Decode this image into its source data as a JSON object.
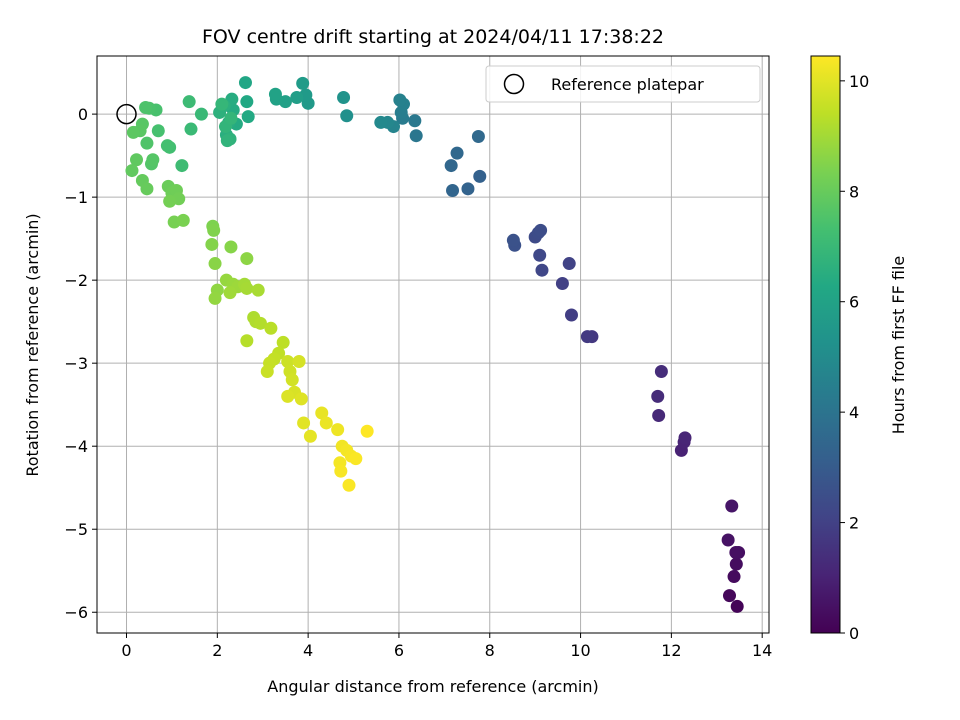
{
  "chart_data": {
    "type": "scatter",
    "title": "FOV centre drift starting at 2024/04/11 17:38:22",
    "xlabel": "Angular distance from reference (arcmin)",
    "ylabel": "Rotation from reference (arcmin)",
    "xlim": [
      -0.65,
      14.15
    ],
    "ylim": [
      -6.25,
      0.7
    ],
    "xticks": [
      0,
      2,
      4,
      6,
      8,
      10,
      12,
      14
    ],
    "yticks": [
      0,
      -1,
      -2,
      -3,
      -4,
      -5,
      -6
    ],
    "xtick_labels": [
      "0",
      "2",
      "4",
      "6",
      "8",
      "10",
      "12",
      "14"
    ],
    "ytick_labels": [
      "0",
      "−1",
      "−2",
      "−3",
      "−4",
      "−5",
      "−6"
    ],
    "grid": true,
    "legend": {
      "label": "Reference platepar",
      "placement": "top-right"
    },
    "reference_point": {
      "x": 0,
      "y": 0
    },
    "colorbar": {
      "label": "Hours from first FF file",
      "range": [
        0,
        10.45
      ],
      "ticks": [
        0,
        2,
        4,
        6,
        8,
        10
      ],
      "tick_labels": [
        "0",
        "2",
        "4",
        "6",
        "8",
        "10"
      ],
      "colormap": "viridis"
    },
    "points": [
      {
        "x": 13.45,
        "y": -5.93,
        "c": 0.1
      },
      {
        "x": 13.28,
        "y": -5.8,
        "c": 0.2
      },
      {
        "x": 13.38,
        "y": -5.57,
        "c": 0.3
      },
      {
        "x": 13.43,
        "y": -5.42,
        "c": 0.35
      },
      {
        "x": 13.48,
        "y": -5.28,
        "c": 0.4
      },
      {
        "x": 13.42,
        "y": -5.28,
        "c": 0.45
      },
      {
        "x": 13.25,
        "y": -5.13,
        "c": 0.5
      },
      {
        "x": 13.33,
        "y": -4.72,
        "c": 0.6
      },
      {
        "x": 12.22,
        "y": -4.05,
        "c": 1.0
      },
      {
        "x": 12.28,
        "y": -3.95,
        "c": 1.05
      },
      {
        "x": 12.3,
        "y": -3.9,
        "c": 1.1
      },
      {
        "x": 11.72,
        "y": -3.63,
        "c": 1.2
      },
      {
        "x": 11.7,
        "y": -3.4,
        "c": 1.3
      },
      {
        "x": 11.78,
        "y": -3.1,
        "c": 1.35
      },
      {
        "x": 10.25,
        "y": -2.68,
        "c": 1.7
      },
      {
        "x": 10.15,
        "y": -2.68,
        "c": 1.75
      },
      {
        "x": 9.8,
        "y": -2.42,
        "c": 1.9
      },
      {
        "x": 9.6,
        "y": -2.04,
        "c": 2.0
      },
      {
        "x": 9.75,
        "y": -1.8,
        "c": 2.05
      },
      {
        "x": 9.15,
        "y": -1.88,
        "c": 2.2
      },
      {
        "x": 9.1,
        "y": -1.7,
        "c": 2.25
      },
      {
        "x": 9.0,
        "y": -1.48,
        "c": 2.35
      },
      {
        "x": 9.07,
        "y": -1.43,
        "c": 2.4
      },
      {
        "x": 9.12,
        "y": -1.4,
        "c": 2.45
      },
      {
        "x": 8.55,
        "y": -1.58,
        "c": 2.6
      },
      {
        "x": 8.52,
        "y": -1.52,
        "c": 2.65
      },
      {
        "x": 7.78,
        "y": -0.75,
        "c": 3.2
      },
      {
        "x": 7.52,
        "y": -0.9,
        "c": 3.3
      },
      {
        "x": 7.18,
        "y": -0.92,
        "c": 3.4
      },
      {
        "x": 7.15,
        "y": -0.62,
        "c": 3.45
      },
      {
        "x": 7.28,
        "y": -0.47,
        "c": 3.5
      },
      {
        "x": 7.75,
        "y": -0.27,
        "c": 3.55
      },
      {
        "x": 6.38,
        "y": -0.26,
        "c": 4.1
      },
      {
        "x": 6.35,
        "y": -0.08,
        "c": 4.2
      },
      {
        "x": 6.08,
        "y": -0.05,
        "c": 4.3
      },
      {
        "x": 6.05,
        "y": 0.02,
        "c": 4.4
      },
      {
        "x": 6.1,
        "y": 0.12,
        "c": 4.5
      },
      {
        "x": 6.02,
        "y": 0.17,
        "c": 4.55
      },
      {
        "x": 5.88,
        "y": -0.15,
        "c": 4.7
      },
      {
        "x": 5.75,
        "y": -0.1,
        "c": 4.8
      },
      {
        "x": 5.6,
        "y": -0.1,
        "c": 4.9
      },
      {
        "x": 4.85,
        "y": -0.02,
        "c": 5.2
      },
      {
        "x": 4.78,
        "y": 0.2,
        "c": 5.3
      },
      {
        "x": 4.0,
        "y": 0.13,
        "c": 5.6
      },
      {
        "x": 3.95,
        "y": 0.23,
        "c": 5.65
      },
      {
        "x": 3.88,
        "y": 0.37,
        "c": 5.7
      },
      {
        "x": 3.75,
        "y": 0.2,
        "c": 5.8
      },
      {
        "x": 3.5,
        "y": 0.15,
        "c": 5.9
      },
      {
        "x": 3.3,
        "y": 0.18,
        "c": 5.95
      },
      {
        "x": 3.28,
        "y": 0.24,
        "c": 6.0
      },
      {
        "x": 2.62,
        "y": 0.38,
        "c": 6.2
      },
      {
        "x": 2.65,
        "y": 0.15,
        "c": 6.25
      },
      {
        "x": 2.68,
        "y": -0.03,
        "c": 6.3
      },
      {
        "x": 2.42,
        "y": -0.12,
        "c": 6.35
      },
      {
        "x": 2.35,
        "y": 0.05,
        "c": 6.4
      },
      {
        "x": 2.32,
        "y": 0.18,
        "c": 6.45
      },
      {
        "x": 2.25,
        "y": -0.1,
        "c": 6.5
      },
      {
        "x": 2.2,
        "y": -0.25,
        "c": 6.55
      },
      {
        "x": 2.15,
        "y": 0.1,
        "c": 6.6
      },
      {
        "x": 2.05,
        "y": 0.02,
        "c": 6.65
      },
      {
        "x": 2.28,
        "y": -0.3,
        "c": 6.7
      },
      {
        "x": 2.22,
        "y": -0.32,
        "c": 6.75
      },
      {
        "x": 2.18,
        "y": -0.15,
        "c": 6.8
      },
      {
        "x": 2.3,
        "y": -0.05,
        "c": 6.85
      },
      {
        "x": 2.1,
        "y": 0.12,
        "c": 6.9
      },
      {
        "x": 1.65,
        "y": 0.0,
        "c": 7.0
      },
      {
        "x": 1.42,
        "y": -0.18,
        "c": 7.05
      },
      {
        "x": 1.38,
        "y": 0.15,
        "c": 7.1
      },
      {
        "x": 1.22,
        "y": -0.62,
        "c": 7.15
      },
      {
        "x": 0.95,
        "y": -0.4,
        "c": 7.25
      },
      {
        "x": 0.9,
        "y": -0.38,
        "c": 7.3
      },
      {
        "x": 0.7,
        "y": -0.2,
        "c": 7.35
      },
      {
        "x": 0.65,
        "y": 0.05,
        "c": 7.4
      },
      {
        "x": 0.5,
        "y": 0.07,
        "c": 7.45
      },
      {
        "x": 0.42,
        "y": 0.08,
        "c": 7.5
      },
      {
        "x": 0.45,
        "y": -0.35,
        "c": 7.55
      },
      {
        "x": 0.55,
        "y": -0.6,
        "c": 7.6
      },
      {
        "x": 0.58,
        "y": -0.55,
        "c": 7.65
      },
      {
        "x": 0.35,
        "y": -0.12,
        "c": 7.7
      },
      {
        "x": 0.3,
        "y": -0.2,
        "c": 7.75
      },
      {
        "x": 0.15,
        "y": -0.22,
        "c": 7.8
      },
      {
        "x": 0.22,
        "y": -0.55,
        "c": 7.85
      },
      {
        "x": 0.12,
        "y": -0.68,
        "c": 7.9
      },
      {
        "x": 0.35,
        "y": -0.8,
        "c": 7.95
      },
      {
        "x": 0.45,
        "y": -0.9,
        "c": 8.0
      },
      {
        "x": 0.92,
        "y": -0.87,
        "c": 8.05
      },
      {
        "x": 1.0,
        "y": -0.95,
        "c": 8.1
      },
      {
        "x": 1.1,
        "y": -0.92,
        "c": 8.15
      },
      {
        "x": 1.15,
        "y": -1.02,
        "c": 8.2
      },
      {
        "x": 0.95,
        "y": -1.05,
        "c": 8.25
      },
      {
        "x": 1.05,
        "y": -1.3,
        "c": 8.3
      },
      {
        "x": 1.25,
        "y": -1.28,
        "c": 8.35
      },
      {
        "x": 1.9,
        "y": -1.35,
        "c": 8.4
      },
      {
        "x": 1.92,
        "y": -1.4,
        "c": 8.45
      },
      {
        "x": 1.88,
        "y": -1.57,
        "c": 8.5
      },
      {
        "x": 2.3,
        "y": -1.6,
        "c": 8.55
      },
      {
        "x": 1.95,
        "y": -1.8,
        "c": 8.6
      },
      {
        "x": 2.65,
        "y": -1.74,
        "c": 8.65
      },
      {
        "x": 2.0,
        "y": -2.12,
        "c": 8.7
      },
      {
        "x": 1.95,
        "y": -2.22,
        "c": 8.75
      },
      {
        "x": 2.2,
        "y": -2.0,
        "c": 8.8
      },
      {
        "x": 2.35,
        "y": -2.05,
        "c": 8.85
      },
      {
        "x": 2.45,
        "y": -2.08,
        "c": 8.9
      },
      {
        "x": 2.28,
        "y": -2.15,
        "c": 8.95
      },
      {
        "x": 2.6,
        "y": -2.05,
        "c": 9.0
      },
      {
        "x": 2.65,
        "y": -2.1,
        "c": 9.05
      },
      {
        "x": 2.9,
        "y": -2.12,
        "c": 9.1
      },
      {
        "x": 2.8,
        "y": -2.45,
        "c": 9.15
      },
      {
        "x": 2.85,
        "y": -2.5,
        "c": 9.2
      },
      {
        "x": 2.95,
        "y": -2.52,
        "c": 9.25
      },
      {
        "x": 2.65,
        "y": -2.73,
        "c": 9.3
      },
      {
        "x": 3.18,
        "y": -2.58,
        "c": 9.35
      },
      {
        "x": 3.45,
        "y": -2.75,
        "c": 9.4
      },
      {
        "x": 3.35,
        "y": -2.88,
        "c": 9.45
      },
      {
        "x": 3.25,
        "y": -2.95,
        "c": 9.5
      },
      {
        "x": 3.15,
        "y": -3.0,
        "c": 9.55
      },
      {
        "x": 3.1,
        "y": -3.1,
        "c": 9.6
      },
      {
        "x": 3.55,
        "y": -2.98,
        "c": 9.65
      },
      {
        "x": 3.6,
        "y": -3.1,
        "c": 9.7
      },
      {
        "x": 3.65,
        "y": -3.2,
        "c": 9.75
      },
      {
        "x": 3.8,
        "y": -2.98,
        "c": 9.8
      },
      {
        "x": 3.7,
        "y": -3.35,
        "c": 9.85
      },
      {
        "x": 3.55,
        "y": -3.4,
        "c": 9.9
      },
      {
        "x": 3.85,
        "y": -3.43,
        "c": 9.95
      },
      {
        "x": 3.9,
        "y": -3.72,
        "c": 10.0
      },
      {
        "x": 4.05,
        "y": -3.88,
        "c": 10.05
      },
      {
        "x": 4.3,
        "y": -3.6,
        "c": 10.1
      },
      {
        "x": 4.4,
        "y": -3.72,
        "c": 10.15
      },
      {
        "x": 4.65,
        "y": -3.8,
        "c": 10.2
      },
      {
        "x": 4.75,
        "y": -4.0,
        "c": 10.25
      },
      {
        "x": 4.85,
        "y": -4.05,
        "c": 10.3
      },
      {
        "x": 4.7,
        "y": -4.2,
        "c": 10.3
      },
      {
        "x": 4.72,
        "y": -4.3,
        "c": 10.35
      },
      {
        "x": 4.95,
        "y": -4.12,
        "c": 10.35
      },
      {
        "x": 5.05,
        "y": -4.15,
        "c": 10.4
      },
      {
        "x": 4.9,
        "y": -4.47,
        "c": 10.4
      },
      {
        "x": 5.3,
        "y": -3.82,
        "c": 10.45
      }
    ]
  }
}
